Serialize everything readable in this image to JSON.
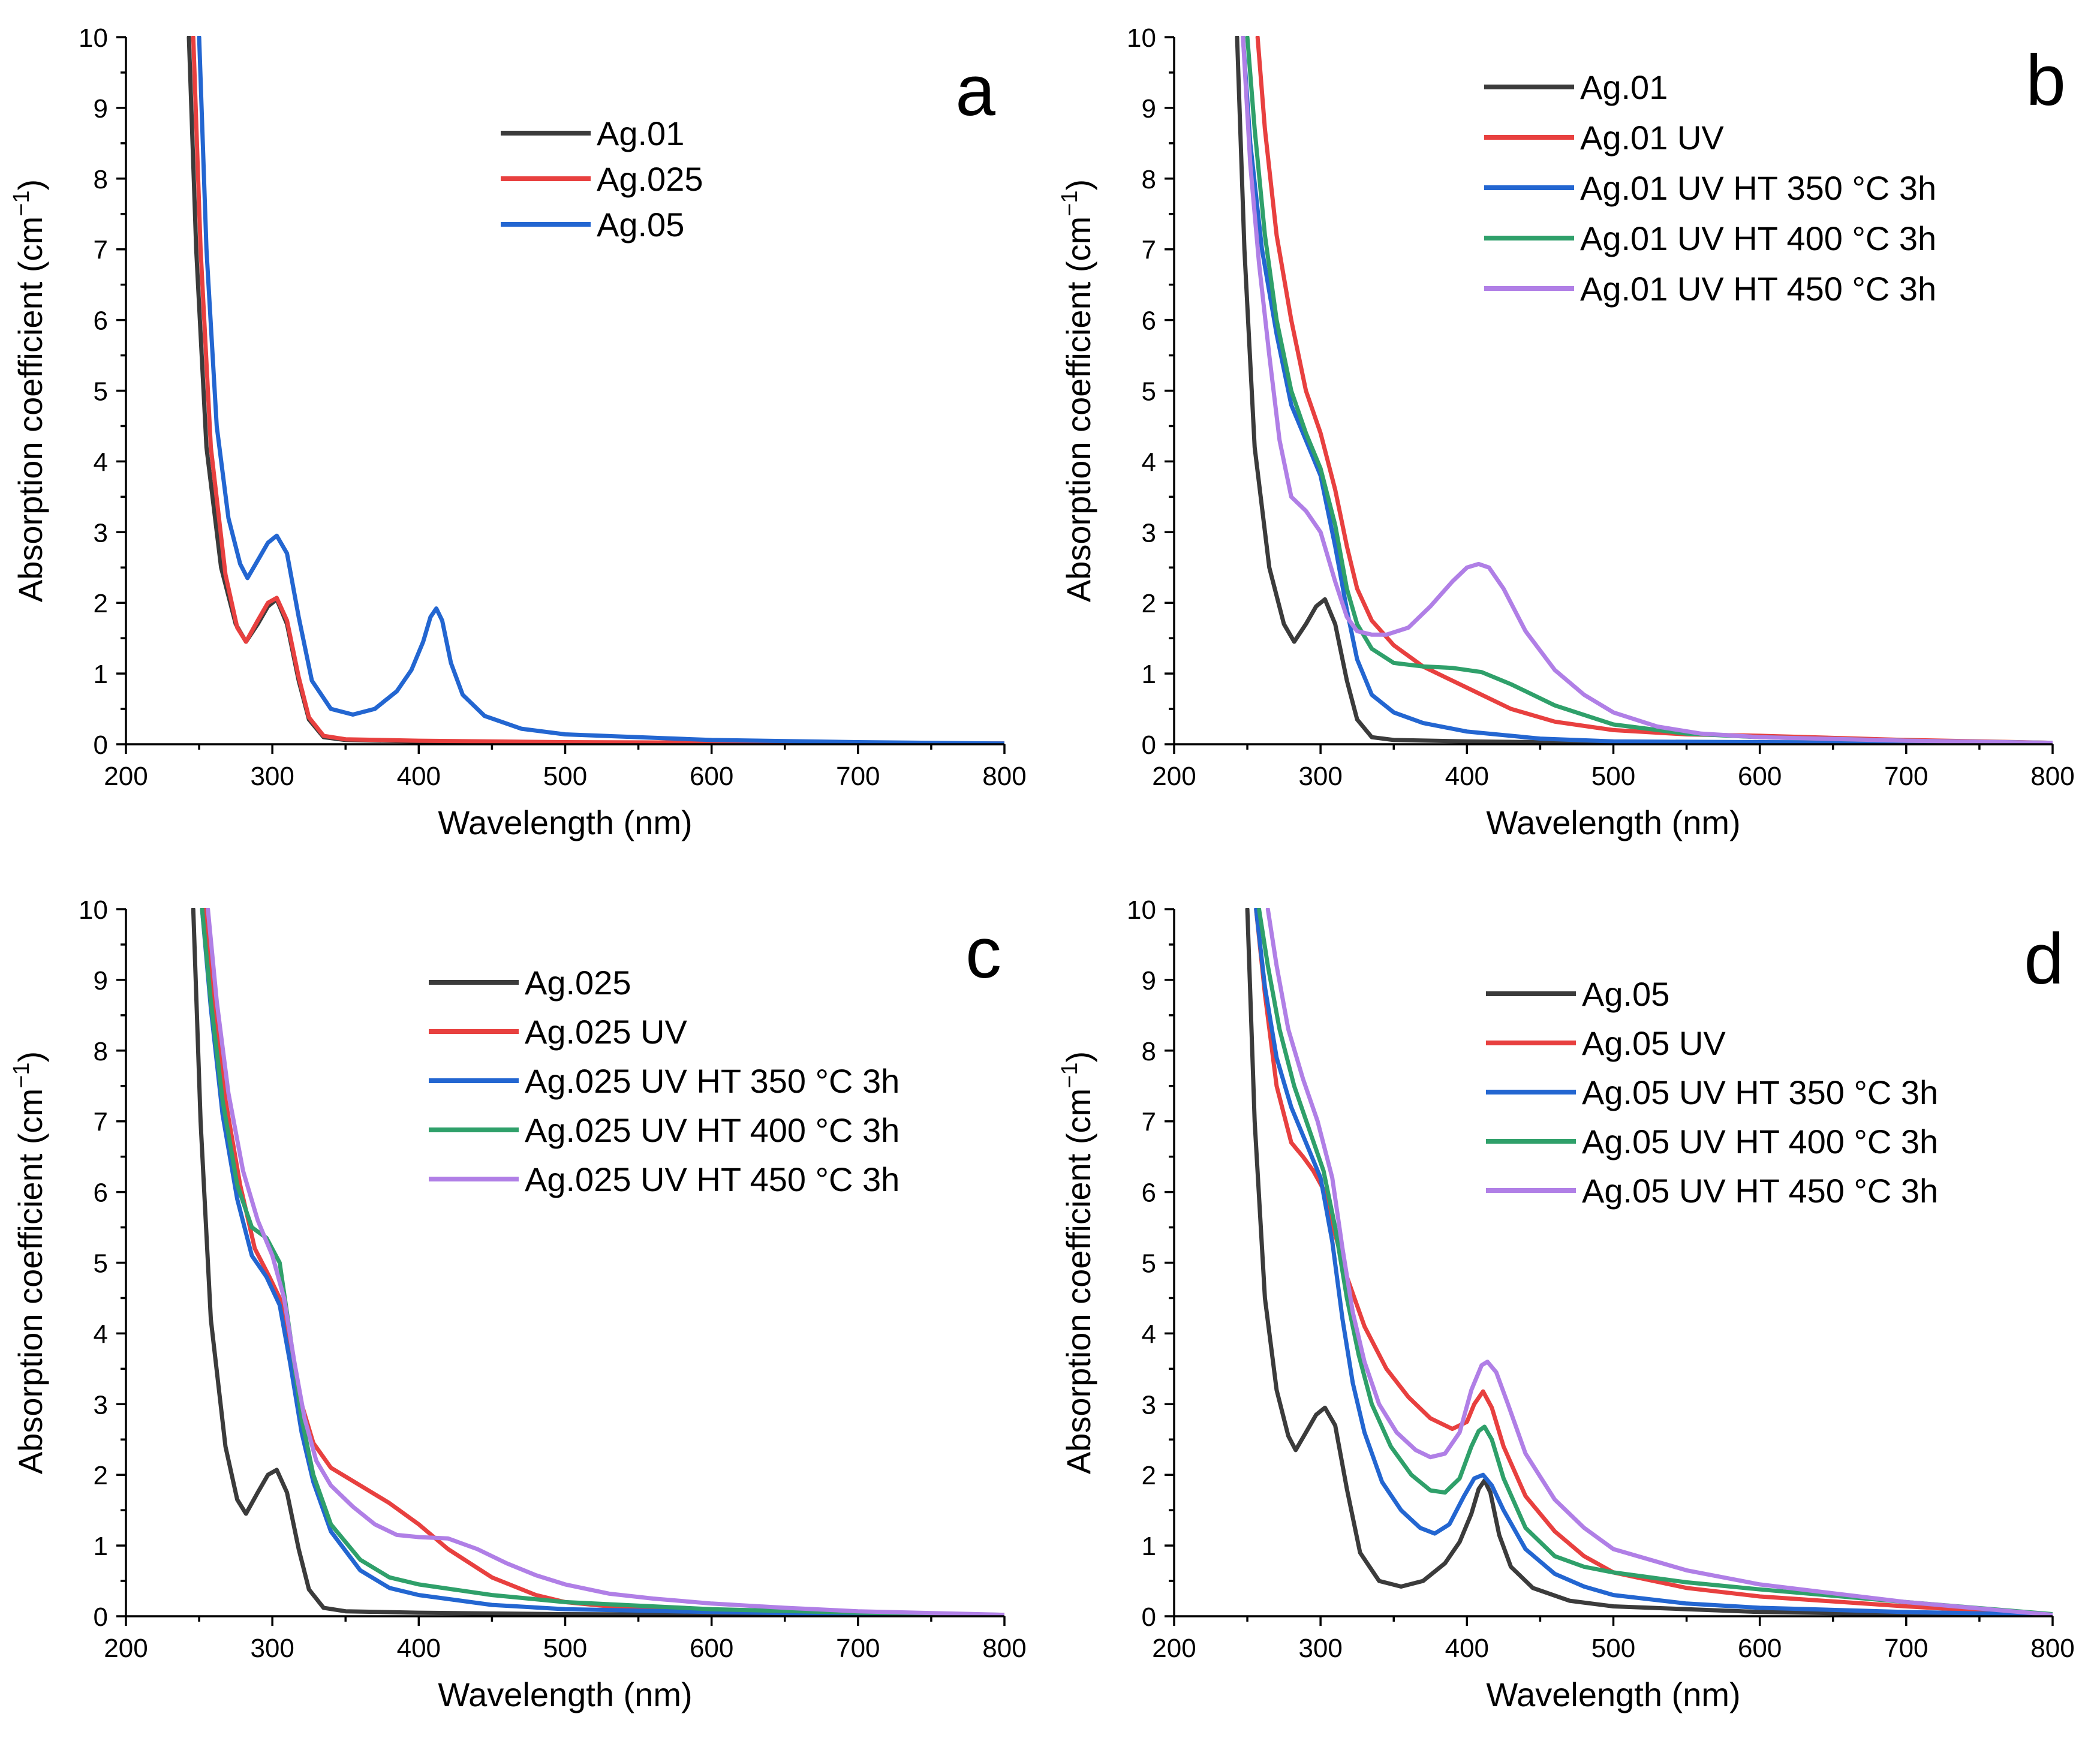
{
  "colors": {
    "black": "#3b3b3b",
    "red": "#e8403f",
    "blue": "#2366d1",
    "green": "#2fa06a",
    "purple": "#b07fe6"
  },
  "chart_data": [
    {
      "type": "line",
      "panel_label": "a",
      "xlabel": "Wavelength (nm)",
      "ylabel_prefix": "Absorption coefficient (cm",
      "ylabel_superscript": "−1",
      "ylabel_suffix": ")",
      "xlim": [
        200,
        800
      ],
      "ylim": [
        0,
        10
      ],
      "xticks": [
        200,
        300,
        400,
        500,
        600,
        700,
        800
      ],
      "yticks": [
        0,
        1,
        2,
        3,
        4,
        5,
        6,
        7,
        8,
        9,
        10
      ],
      "legend": "top-center",
      "series": [
        {
          "name": "Ag.01",
          "color": "#3b3b3b",
          "x": [
            243,
            248,
            255,
            265,
            275,
            282,
            290,
            297,
            303,
            310,
            318,
            325,
            335,
            350,
            400,
            500,
            800
          ],
          "y": [
            10,
            7.0,
            4.2,
            2.5,
            1.7,
            1.45,
            1.7,
            1.95,
            2.05,
            1.7,
            0.9,
            0.35,
            0.1,
            0.06,
            0.04,
            0.02,
            0.01
          ]
        },
        {
          "name": "Ag.025",
          "color": "#e8403f",
          "x": [
            246,
            251,
            258,
            268,
            276,
            282,
            290,
            297,
            303,
            310,
            318,
            325,
            335,
            350,
            400,
            500,
            800
          ],
          "y": [
            10,
            7.0,
            4.2,
            2.4,
            1.65,
            1.45,
            1.75,
            2.0,
            2.07,
            1.75,
            0.95,
            0.38,
            0.12,
            0.07,
            0.05,
            0.03,
            0.01
          ]
        },
        {
          "name": "Ag.05",
          "color": "#2366d1",
          "x": [
            250,
            255,
            262,
            270,
            278,
            283,
            290,
            297,
            303,
            310,
            318,
            327,
            340,
            355,
            370,
            385,
            395,
            403,
            408,
            412,
            416,
            422,
            430,
            445,
            470,
            500,
            600,
            700,
            800
          ],
          "y": [
            10,
            7.0,
            4.5,
            3.2,
            2.55,
            2.35,
            2.6,
            2.85,
            2.95,
            2.7,
            1.8,
            0.9,
            0.5,
            0.42,
            0.5,
            0.75,
            1.05,
            1.45,
            1.8,
            1.92,
            1.75,
            1.15,
            0.7,
            0.4,
            0.22,
            0.14,
            0.06,
            0.03,
            0.01
          ]
        }
      ]
    },
    {
      "type": "line",
      "panel_label": "b",
      "xlabel": "Wavelength (nm)",
      "ylabel_prefix": "Absorption coefficient (cm",
      "ylabel_superscript": "−1",
      "ylabel_suffix": ")",
      "xlim": [
        200,
        800
      ],
      "ylim": [
        0,
        10
      ],
      "xticks": [
        200,
        300,
        400,
        500,
        600,
        700,
        800
      ],
      "yticks": [
        0,
        1,
        2,
        3,
        4,
        5,
        6,
        7,
        8,
        9,
        10
      ],
      "legend": "top-center",
      "series": [
        {
          "name": "Ag.01",
          "color": "#3b3b3b",
          "x": [
            243,
            248,
            255,
            265,
            275,
            282,
            290,
            297,
            303,
            310,
            318,
            325,
            335,
            350,
            400,
            500,
            800
          ],
          "y": [
            10,
            7.0,
            4.2,
            2.5,
            1.7,
            1.45,
            1.7,
            1.95,
            2.05,
            1.7,
            0.9,
            0.35,
            0.1,
            0.06,
            0.04,
            0.02,
            0.01
          ]
        },
        {
          "name": "Ag.01 UV",
          "color": "#e8403f",
          "x": [
            257,
            262,
            270,
            280,
            290,
            300,
            310,
            318,
            325,
            335,
            350,
            370,
            400,
            430,
            460,
            500,
            550,
            600,
            700,
            800
          ],
          "y": [
            10,
            8.7,
            7.2,
            6.0,
            5.0,
            4.4,
            3.6,
            2.8,
            2.2,
            1.75,
            1.4,
            1.1,
            0.8,
            0.5,
            0.32,
            0.2,
            0.14,
            0.12,
            0.06,
            0.02
          ]
        },
        {
          "name": "Ag.01 UV HT 350 °C 3h",
          "color": "#2366d1",
          "x": [
            247,
            252,
            260,
            270,
            280,
            290,
            300,
            310,
            318,
            325,
            335,
            350,
            370,
            400,
            450,
            500,
            600,
            800
          ],
          "y": [
            10,
            8.5,
            7.0,
            5.8,
            4.8,
            4.3,
            3.8,
            2.8,
            1.9,
            1.2,
            0.7,
            0.45,
            0.3,
            0.18,
            0.08,
            0.04,
            0.03,
            0.02
          ]
        },
        {
          "name": "Ag.01 UV HT 400 °C 3h",
          "color": "#2fa06a",
          "x": [
            250,
            255,
            262,
            270,
            280,
            290,
            300,
            310,
            318,
            325,
            335,
            350,
            370,
            390,
            410,
            430,
            460,
            500,
            550,
            600,
            700,
            800
          ],
          "y": [
            10,
            8.7,
            7.2,
            6.0,
            5.0,
            4.4,
            3.9,
            3.1,
            2.2,
            1.7,
            1.35,
            1.15,
            1.1,
            1.08,
            1.02,
            0.85,
            0.55,
            0.28,
            0.15,
            0.1,
            0.05,
            0.02
          ]
        },
        {
          "name": "Ag.01 UV HT 450 °C 3h",
          "color": "#b07fe6",
          "x": [
            247,
            252,
            258,
            265,
            272,
            280,
            290,
            300,
            310,
            318,
            325,
            335,
            345,
            360,
            375,
            390,
            400,
            408,
            415,
            425,
            440,
            460,
            480,
            500,
            530,
            560,
            600,
            700,
            800
          ],
          "y": [
            10,
            8.2,
            6.8,
            5.5,
            4.3,
            3.5,
            3.3,
            3.0,
            2.3,
            1.8,
            1.6,
            1.55,
            1.55,
            1.65,
            1.95,
            2.3,
            2.5,
            2.55,
            2.5,
            2.2,
            1.6,
            1.05,
            0.7,
            0.45,
            0.25,
            0.15,
            0.1,
            0.05,
            0.02
          ]
        }
      ]
    },
    {
      "type": "line",
      "panel_label": "c",
      "xlabel": "Wavelength (nm)",
      "ylabel_prefix": "Absorption coefficient (cm",
      "ylabel_superscript": "−1",
      "ylabel_suffix": ")",
      "xlim": [
        200,
        800
      ],
      "ylim": [
        0,
        10
      ],
      "xticks": [
        200,
        300,
        400,
        500,
        600,
        700,
        800
      ],
      "yticks": [
        0,
        1,
        2,
        3,
        4,
        5,
        6,
        7,
        8,
        9,
        10
      ],
      "legend": "top-center",
      "series": [
        {
          "name": "Ag.025",
          "color": "#3b3b3b",
          "x": [
            246,
            251,
            258,
            268,
            276,
            282,
            290,
            297,
            303,
            310,
            318,
            325,
            335,
            350,
            400,
            500,
            800
          ],
          "y": [
            10,
            7.0,
            4.2,
            2.4,
            1.65,
            1.45,
            1.75,
            2.0,
            2.07,
            1.75,
            0.95,
            0.38,
            0.12,
            0.07,
            0.05,
            0.03,
            0.01
          ]
        },
        {
          "name": "Ag.025 UV",
          "color": "#e8403f",
          "x": [
            254,
            260,
            268,
            278,
            288,
            298,
            305,
            312,
            320,
            328,
            340,
            360,
            380,
            400,
            420,
            450,
            480,
            500,
            550,
            600,
            700,
            800
          ],
          "y": [
            10,
            8.6,
            7.3,
            6.1,
            5.2,
            4.8,
            4.5,
            3.8,
            3.0,
            2.45,
            2.1,
            1.85,
            1.6,
            1.3,
            0.95,
            0.55,
            0.3,
            0.2,
            0.1,
            0.07,
            0.04,
            0.01
          ]
        },
        {
          "name": "Ag.025 UV HT 350 °C 3h",
          "color": "#2366d1",
          "x": [
            252,
            258,
            266,
            276,
            286,
            296,
            305,
            312,
            320,
            328,
            340,
            360,
            380,
            400,
            450,
            500,
            600,
            700,
            800
          ],
          "y": [
            10,
            8.6,
            7.1,
            5.9,
            5.1,
            4.8,
            4.4,
            3.6,
            2.6,
            1.9,
            1.2,
            0.65,
            0.4,
            0.3,
            0.16,
            0.1,
            0.06,
            0.03,
            0.01
          ]
        },
        {
          "name": "Ag.025 UV HT 400 °C 3h",
          "color": "#2fa06a",
          "x": [
            252,
            258,
            266,
            276,
            286,
            296,
            305,
            312,
            320,
            328,
            340,
            360,
            380,
            400,
            450,
            500,
            600,
            700,
            800
          ],
          "y": [
            10,
            8.7,
            7.3,
            6.1,
            5.5,
            5.35,
            5.0,
            4.0,
            2.8,
            2.0,
            1.3,
            0.8,
            0.55,
            0.45,
            0.3,
            0.2,
            0.1,
            0.05,
            0.02
          ]
        },
        {
          "name": "Ag.025 UV HT 450 °C 3h",
          "color": "#b07fe6",
          "x": [
            256,
            262,
            270,
            280,
            290,
            300,
            308,
            315,
            322,
            330,
            340,
            355,
            370,
            385,
            400,
            420,
            440,
            460,
            480,
            500,
            530,
            560,
            600,
            650,
            700,
            800
          ],
          "y": [
            10,
            8.7,
            7.4,
            6.3,
            5.6,
            5.1,
            4.5,
            3.6,
            2.8,
            2.2,
            1.85,
            1.55,
            1.3,
            1.15,
            1.12,
            1.1,
            0.95,
            0.75,
            0.58,
            0.45,
            0.32,
            0.25,
            0.18,
            0.12,
            0.07,
            0.02
          ]
        }
      ]
    },
    {
      "type": "line",
      "panel_label": "d",
      "xlabel": "Wavelength (nm)",
      "ylabel_prefix": "Absorption coefficient (cm",
      "ylabel_superscript": "−1",
      "ylabel_suffix": ")",
      "xlim": [
        200,
        800
      ],
      "ylim": [
        0,
        10
      ],
      "xticks": [
        200,
        300,
        400,
        500,
        600,
        700,
        800
      ],
      "yticks": [
        0,
        1,
        2,
        3,
        4,
        5,
        6,
        7,
        8,
        9,
        10
      ],
      "legend": "top-center",
      "series": [
        {
          "name": "Ag.05",
          "color": "#3b3b3b",
          "x": [
            250,
            255,
            262,
            270,
            278,
            283,
            290,
            297,
            303,
            310,
            318,
            327,
            340,
            355,
            370,
            385,
            395,
            403,
            408,
            412,
            416,
            422,
            430,
            445,
            470,
            500,
            600,
            700,
            800
          ],
          "y": [
            10,
            7.0,
            4.5,
            3.2,
            2.55,
            2.35,
            2.6,
            2.85,
            2.95,
            2.7,
            1.8,
            0.9,
            0.5,
            0.42,
            0.5,
            0.75,
            1.05,
            1.45,
            1.8,
            1.92,
            1.75,
            1.15,
            0.7,
            0.4,
            0.22,
            0.14,
            0.06,
            0.03,
            0.01
          ]
        },
        {
          "name": "Ag.05 UV",
          "color": "#e8403f",
          "x": [
            256,
            262,
            270,
            280,
            288,
            295,
            303,
            310,
            318,
            330,
            345,
            360,
            375,
            390,
            400,
            405,
            411,
            417,
            425,
            440,
            460,
            480,
            500,
            550,
            600,
            700,
            800
          ],
          "y": [
            10,
            8.8,
            7.5,
            6.7,
            6.5,
            6.3,
            6.0,
            5.4,
            4.8,
            4.1,
            3.5,
            3.1,
            2.8,
            2.65,
            2.75,
            3.0,
            3.18,
            2.95,
            2.4,
            1.7,
            1.2,
            0.85,
            0.62,
            0.4,
            0.28,
            0.14,
            0.02
          ]
        },
        {
          "name": "Ag.05 UV HT 350 °C 3h",
          "color": "#2366d1",
          "x": [
            256,
            262,
            270,
            280,
            290,
            300,
            308,
            315,
            322,
            330,
            342,
            355,
            368,
            378,
            388,
            398,
            405,
            411,
            417,
            425,
            440,
            460,
            480,
            500,
            550,
            600,
            700,
            800
          ],
          "y": [
            10,
            8.9,
            7.9,
            7.2,
            6.7,
            6.2,
            5.3,
            4.2,
            3.3,
            2.6,
            1.9,
            1.5,
            1.25,
            1.17,
            1.3,
            1.7,
            1.95,
            2.0,
            1.85,
            1.5,
            0.95,
            0.6,
            0.42,
            0.3,
            0.18,
            0.12,
            0.06,
            0.02
          ]
        },
        {
          "name": "Ag.05 UV HT 400 °C 3h",
          "color": "#2fa06a",
          "x": [
            258,
            264,
            272,
            282,
            292,
            302,
            310,
            318,
            326,
            335,
            348,
            362,
            375,
            385,
            395,
            403,
            408,
            412,
            417,
            425,
            440,
            460,
            480,
            500,
            550,
            600,
            700,
            800
          ],
          "y": [
            10,
            9.2,
            8.3,
            7.5,
            6.9,
            6.3,
            5.5,
            4.5,
            3.7,
            3.0,
            2.4,
            2.0,
            1.78,
            1.75,
            1.95,
            2.4,
            2.62,
            2.68,
            2.5,
            1.95,
            1.25,
            0.85,
            0.7,
            0.62,
            0.48,
            0.38,
            0.2,
            0.03
          ]
        },
        {
          "name": "Ag.05 UV HT 450 °C 3h",
          "color": "#b07fe6",
          "x": [
            264,
            270,
            278,
            288,
            298,
            308,
            315,
            322,
            330,
            340,
            352,
            365,
            375,
            385,
            395,
            403,
            410,
            414,
            420,
            428,
            440,
            460,
            480,
            500,
            550,
            600,
            700,
            800
          ],
          "y": [
            10,
            9.2,
            8.3,
            7.6,
            7.0,
            6.2,
            5.2,
            4.3,
            3.6,
            3.0,
            2.6,
            2.35,
            2.25,
            2.3,
            2.6,
            3.2,
            3.55,
            3.6,
            3.45,
            3.0,
            2.3,
            1.65,
            1.25,
            0.95,
            0.65,
            0.45,
            0.2,
            0.02
          ]
        }
      ]
    }
  ]
}
